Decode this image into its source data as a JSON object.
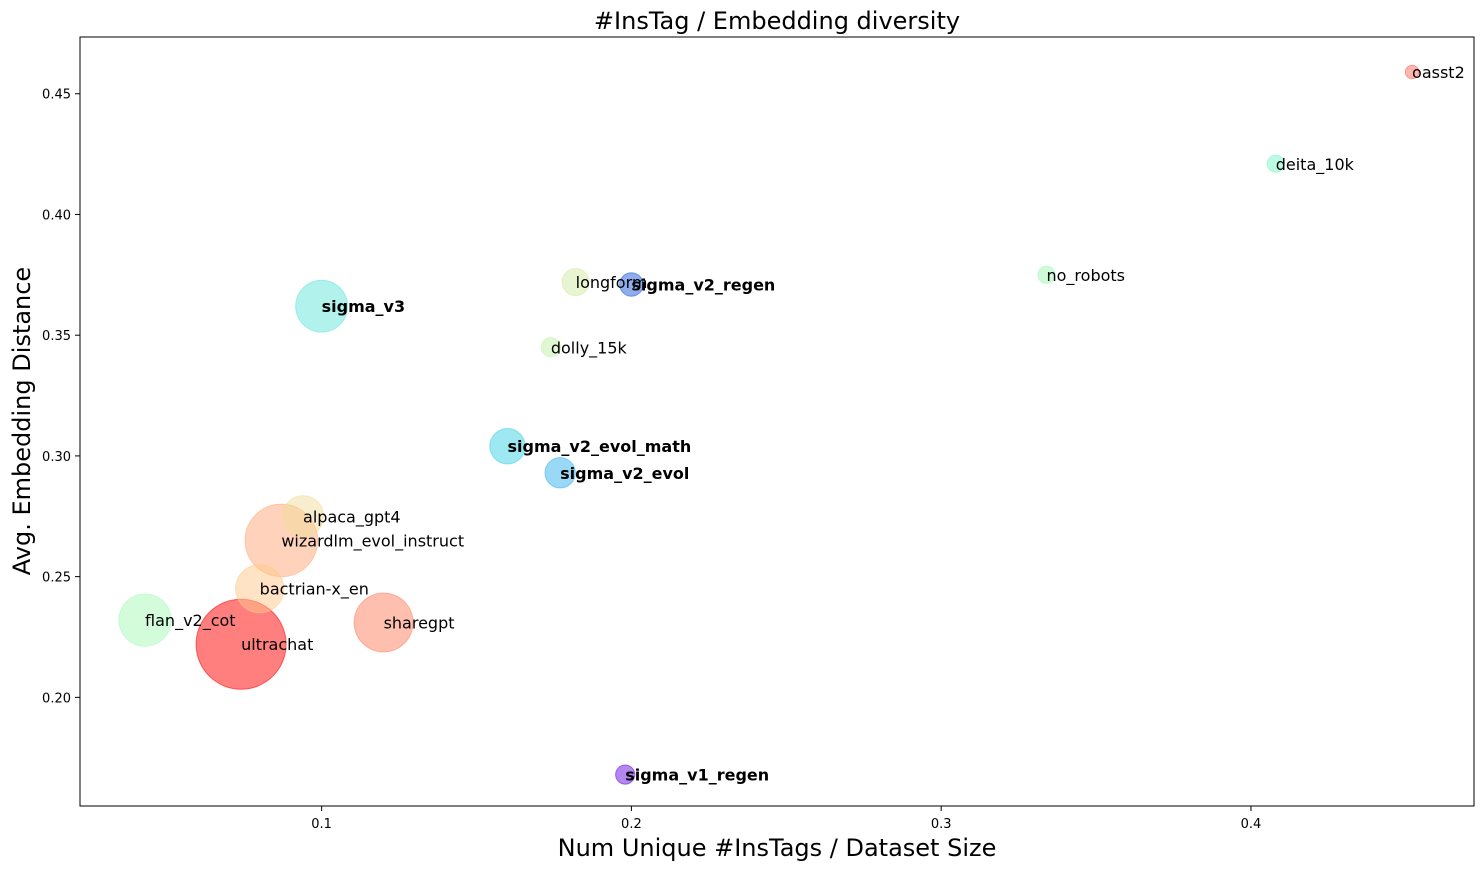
{
  "chart_data": {
    "type": "scatter",
    "title": "#InsTag / Embedding diversity",
    "xlabel": "Num Unique #InsTags / Dataset Size",
    "ylabel": "Avg. Embedding Distance",
    "xlim": [
      0.022,
      0.472
    ],
    "ylim": [
      0.155,
      0.4735
    ],
    "xticks": [
      0.1,
      0.2,
      0.3,
      0.4
    ],
    "xtick_labels": [
      "0.1",
      "0.2",
      "0.3",
      "0.4"
    ],
    "yticks": [
      0.2,
      0.25,
      0.3,
      0.35,
      0.4,
      0.45
    ],
    "ytick_labels": [
      "0.20",
      "0.25",
      "0.30",
      "0.35",
      "0.40",
      "0.45"
    ],
    "grid": false,
    "legend": false,
    "size_encoding": "bubble area proportional to dataset size (relative values)",
    "points": [
      {
        "label": "oasst2",
        "x": 0.452,
        "y": 0.459,
        "size": 0.5,
        "color": "#ff6a5a",
        "bold": false
      },
      {
        "label": "deita_10k",
        "x": 0.408,
        "y": 0.421,
        "size": 0.8,
        "color": "#7cf5c8",
        "bold": false
      },
      {
        "label": "no_robots",
        "x": 0.334,
        "y": 0.375,
        "size": 0.8,
        "color": "#9ff7b4",
        "bold": false
      },
      {
        "label": "longform",
        "x": 0.182,
        "y": 0.372,
        "size": 2.0,
        "color": "#d3e9a6",
        "bold": false
      },
      {
        "label": "sigma_v2_regen",
        "x": 0.2,
        "y": 0.371,
        "size": 1.5,
        "color": "#1f5bdc",
        "bold": true
      },
      {
        "label": "sigma_v3",
        "x": 0.1,
        "y": 0.362,
        "size": 7.3,
        "color": "#63e6da",
        "bold": true
      },
      {
        "label": "dolly_15k",
        "x": 0.174,
        "y": 0.345,
        "size": 1.0,
        "color": "#bff2a8",
        "bold": false
      },
      {
        "label": "sigma_v2_evol_math",
        "x": 0.16,
        "y": 0.304,
        "size": 3.4,
        "color": "#3ed1e6",
        "bold": true
      },
      {
        "label": "sigma_v2_evol",
        "x": 0.177,
        "y": 0.293,
        "size": 2.5,
        "color": "#34b4ec",
        "bold": true
      },
      {
        "label": "alpaca_gpt4",
        "x": 0.094,
        "y": 0.275,
        "size": 4.6,
        "color": "#f2dc9c",
        "bold": false
      },
      {
        "label": "wizardlm_evol_instruct",
        "x": 0.087,
        "y": 0.265,
        "size": 14.3,
        "color": "#ffa878",
        "bold": false
      },
      {
        "label": "bactrian-x_en",
        "x": 0.08,
        "y": 0.245,
        "size": 6.3,
        "color": "#ffc88a",
        "bold": false
      },
      {
        "label": "flan_v2_cot",
        "x": 0.043,
        "y": 0.232,
        "size": 7.4,
        "color": "#a7f9b8",
        "bold": false
      },
      {
        "label": "sharegpt",
        "x": 0.12,
        "y": 0.231,
        "size": 9.4,
        "color": "#ff805d",
        "bold": false
      },
      {
        "label": "ultrachat",
        "x": 0.074,
        "y": 0.222,
        "size": 22.0,
        "color": "#ff0000",
        "bold": false
      },
      {
        "label": "sigma_v1_regen",
        "x": 0.198,
        "y": 0.168,
        "size": 1.0,
        "color": "#6a0ee0",
        "bold": true
      }
    ]
  }
}
